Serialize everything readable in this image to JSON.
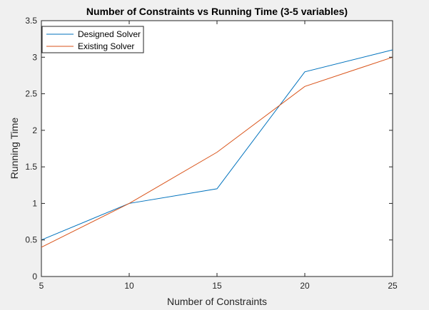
{
  "chart_data": {
    "type": "line",
    "title": "Number of Constraints vs Running Time (3-5 variables)",
    "xlabel": "Number of Constraints",
    "ylabel": "Running Time",
    "x": [
      5,
      10,
      15,
      20,
      25
    ],
    "xlim": [
      5,
      25
    ],
    "ylim": [
      0,
      3.5
    ],
    "xticks": [
      "5",
      "10",
      "15",
      "20",
      "25"
    ],
    "yticks": [
      "0",
      "0.5",
      "1",
      "1.5",
      "2",
      "2.5",
      "3",
      "3.5"
    ],
    "grid": false,
    "legend_position": "top-left",
    "series": [
      {
        "name": "Designed Solver",
        "values": [
          0.5,
          1.0,
          1.2,
          2.8,
          3.1
        ],
        "color": "#0072BD"
      },
      {
        "name": "Existing Solver",
        "values": [
          0.4,
          1.0,
          1.7,
          2.6,
          3.0
        ],
        "color": "#D95319"
      }
    ]
  }
}
